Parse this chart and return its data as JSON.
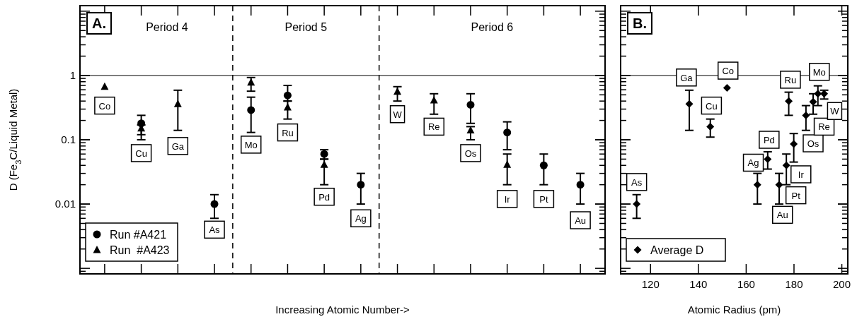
{
  "chart_data": [
    {
      "type": "scatter",
      "title": "A.",
      "xlabel": "Increasing Atomic Number->",
      "ylabel": "D (Fe$_{3}$C/Liquid Metal)",
      "categories": [
        null,
        null,
        null,
        null,
        null,
        null,
        null,
        null,
        null,
        null,
        null,
        null,
        null,
        null
      ],
      "log": "y",
      "ylim": [
        0.00082,
        12.2
      ],
      "yticks": [
        0.01,
        0.1,
        1
      ],
      "legend": "bottom left",
      "series": [
        {
          "name": "Run #A421",
          "color": "#000000",
          "marker": "circle",
          "values": [
            null,
            0.18,
            null,
            0.01,
            0.29,
            0.49,
            0.06,
            0.02,
            null,
            null,
            0.35,
            0.13,
            0.04,
            0.02
          ],
          "errors": [
            null,
            [
              0.1,
              0.24
            ],
            null,
            [
              0.006,
              0.014
            ],
            [
              0.13,
              0.46
            ],
            [
              0.4,
              0.7
            ],
            [
              0.05,
              0.07
            ],
            [
              0.01,
              0.03
            ],
            null,
            null,
            [
              0.18,
              0.52
            ],
            [
              0.07,
              0.19
            ],
            [
              0.02,
              0.06
            ],
            [
              0.01,
              0.03
            ]
          ]
        },
        {
          "name": "Run  #A423",
          "color": "#000000",
          "marker": "triangle",
          "values": [
            0.67,
            0.15,
            0.36,
            null,
            0.78,
            0.32,
            0.041,
            null,
            0.56,
            0.41,
            0.14,
            0.041,
            null,
            null
          ],
          "errors": [
            null,
            [
              0.12,
              0.17
            ],
            [
              0.14,
              0.59
            ],
            null,
            [
              0.57,
              0.93
            ],
            [
              0.21,
              0.4
            ],
            [
              0.02,
              0.05
            ],
            null,
            [
              0.4,
              0.67
            ],
            [
              0.25,
              0.52
            ],
            [
              0.1,
              0.16
            ],
            [
              0.02,
              0.06
            ],
            null,
            null
          ]
        }
      ],
      "ref_lines": [
        {
          "axis": "y",
          "value": 1,
          "line_style": "solid"
        }
      ],
      "annotations": [
        "Period 4",
        "Period 5",
        "Period 6",
        {
          "text": "Co",
          "y": 0.34
        },
        {
          "text": "Cu",
          "y": 0.062
        },
        {
          "text": "Ga",
          "y": 0.08
        },
        {
          "text": "As",
          "y": 0.004
        },
        {
          "text": "Mo",
          "y": 0.084
        },
        {
          "text": "Ru",
          "y": 0.13
        },
        {
          "text": "Pd",
          "y": 0.013
        },
        {
          "text": "Ag",
          "y": 0.006
        },
        {
          "text": "W",
          "y": 0.25
        },
        {
          "text": "Re",
          "y": 0.16
        },
        {
          "text": "Os",
          "y": 0.062
        },
        {
          "text": "Ir",
          "y": 0.012
        },
        {
          "text": "Pt",
          "y": 0.012
        },
        {
          "text": "Au",
          "y": 0.0056
        }
      ]
    },
    {
      "type": "scatter",
      "title": "B.",
      "xlabel": "Atomic Radius (pm)",
      "xlim": [
        107.5,
        202.5
      ],
      "xticks": [
        120,
        140,
        160,
        180,
        200
      ],
      "log": "y",
      "ylim": [
        0.00082,
        12.2
      ],
      "yticks": [
        0.01,
        0.1,
        1
      ],
      "tick_labels": "x",
      "legend": "bottom left",
      "series": [
        {
          "name": "Average D",
          "color": "#000000",
          "marker": "diamond",
          "x": [
            114.2,
            136.2,
            145,
            152,
            164.7,
            169,
            173.8,
            176.8,
            179.9,
            177.8,
            185,
            188,
            190,
            192.6
          ],
          "values": [
            0.01,
            0.36,
            0.16,
            0.64,
            0.02,
            0.05,
            0.02,
            0.04,
            0.086,
            0.4,
            0.24,
            0.39,
            0.52,
            0.52
          ],
          "errors": [
            [
              0.006,
              0.014
            ],
            [
              0.14,
              0.59
            ],
            [
              0.11,
              0.21
            ],
            null,
            [
              0.01,
              0.03
            ],
            [
              0.035,
              0.065
            ],
            [
              0.01,
              0.03
            ],
            [
              0.02,
              0.06
            ],
            [
              0.045,
              0.125
            ],
            [
              0.24,
              0.55
            ],
            [
              0.14,
              0.34
            ],
            [
              0.25,
              0.52
            ],
            [
              0.34,
              0.69
            ],
            [
              0.43,
              0.59
            ]
          ]
        }
      ],
      "ref_lines": [
        {
          "axis": "y",
          "value": 1,
          "line_style": "solid"
        }
      ],
      "annotations": [
        {
          "text": "As",
          "x": 114.2,
          "y": 0.022
        },
        {
          "text": "Ga",
          "x": 135,
          "y": 0.93
        },
        {
          "text": "Cu",
          "x": 145.5,
          "y": 0.34
        },
        {
          "text": "Co",
          "x": 152.4,
          "y": 1.19
        },
        {
          "text": "Ag",
          "x": 163,
          "y": 0.044
        },
        {
          "text": "Pd",
          "x": 169.6,
          "y": 0.1
        },
        {
          "text": "Au",
          "x": 175.2,
          "y": 0.0068
        },
        {
          "text": "Pt",
          "x": 180.8,
          "y": 0.0137
        },
        {
          "text": "Ir",
          "x": 182.9,
          "y": 0.029
        },
        {
          "text": "Ru",
          "x": 178.5,
          "y": 0.86
        },
        {
          "text": "Os",
          "x": 188,
          "y": 0.088
        },
        {
          "text": "Re",
          "x": 192.6,
          "y": 0.16
        },
        {
          "text": "Mo",
          "x": 190.6,
          "y": 1.14
        },
        {
          "text": "W",
          "x": 197,
          "y": 0.28
        }
      ]
    }
  ]
}
